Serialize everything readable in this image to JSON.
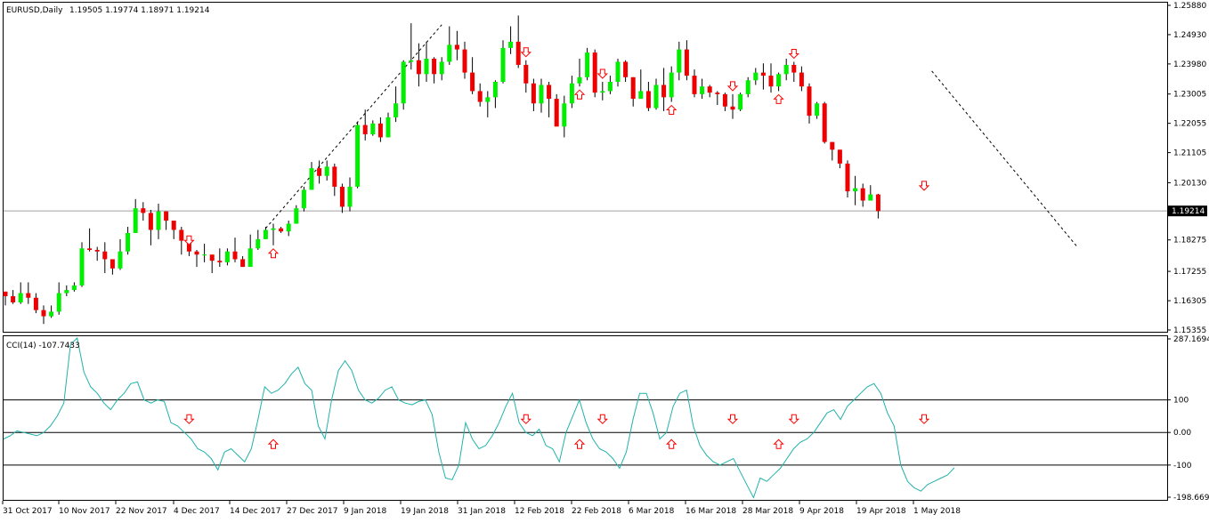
{
  "header": {
    "symbol_label": "EURUSD,Daily",
    "ohlc": "1.19505 1.19774 1.18971 1.19214"
  },
  "colors": {
    "bull": "#00ee00",
    "bear": "#ee0000",
    "cci_line": "#20b2aa",
    "arrow": "#ff0000",
    "frame": "#000000",
    "current_price_line": "#a0a0a0"
  },
  "chart_data": [
    {
      "type": "candlestick",
      "title": "EURUSD,Daily",
      "ylim": [
        1.15355,
        1.2588
      ],
      "current_price": 1.19214,
      "current_price_label": "1.19214",
      "y_tick_labels": [
        "1.25880",
        "1.24930",
        "1.23980",
        "1.23005",
        "1.22055",
        "1.21105",
        "1.20130",
        "1.18275",
        "1.17255",
        "1.16305",
        "1.15355"
      ],
      "x_tick_labels": [
        "31 Oct 2017",
        "10 Nov 2017",
        "22 Nov 2017",
        "4 Dec 2017",
        "14 Dec 2017",
        "27 Dec 2017",
        "9 Jan 2018",
        "19 Jan 2018",
        "31 Jan 2018",
        "12 Feb 2018",
        "22 Feb 2018",
        "6 Mar 2018",
        "16 Mar 2018",
        "28 Mar 2018",
        "9 Apr 2018",
        "19 Apr 2018",
        "1 May 2018"
      ],
      "close": [
        1.1645,
        1.1625,
        1.1655,
        1.164,
        1.16,
        1.158,
        1.1595,
        1.1655,
        1.1665,
        1.168,
        1.18,
        1.1795,
        1.179,
        1.1765,
        1.1735,
        1.179,
        1.185,
        1.193,
        1.1915,
        1.186,
        1.192,
        1.189,
        1.186,
        1.1825,
        1.179,
        1.178,
        1.178,
        1.176,
        1.1755,
        1.179,
        1.1765,
        1.174,
        1.18,
        1.183,
        1.186,
        1.1865,
        1.1855,
        1.188,
        1.193,
        1.199,
        1.206,
        1.2035,
        1.2065,
        1.2,
        1.1935,
        1.2,
        1.22,
        1.217,
        1.2205,
        1.216,
        1.2225,
        1.227,
        1.2405,
        1.241,
        1.2365,
        1.2415,
        1.2365,
        1.2405,
        1.246,
        1.2445,
        1.237,
        1.231,
        1.2275,
        1.229,
        1.234,
        1.245,
        1.247,
        1.2395,
        1.2335,
        1.227,
        1.233,
        1.2285,
        1.2195,
        1.227,
        1.2335,
        1.2355,
        1.2435,
        1.2305,
        1.231,
        1.234,
        1.2405,
        1.2355,
        1.2285,
        1.231,
        1.2255,
        1.233,
        1.229,
        1.237,
        1.2445,
        1.236,
        1.23,
        1.2325,
        1.2305,
        1.23,
        1.226,
        1.225,
        1.23,
        1.2345,
        1.237,
        1.236,
        1.2325,
        1.2365,
        1.2395,
        1.237,
        1.2325,
        1.223,
        1.227,
        1.2145,
        1.212,
        1.2075,
        1.1985,
        1.1995,
        1.1955,
        1.1975,
        1.1921
      ],
      "high": [
        1.166,
        1.1665,
        1.169,
        1.169,
        1.1655,
        1.1615,
        1.1615,
        1.169,
        1.168,
        1.169,
        1.182,
        1.1865,
        1.1805,
        1.182,
        1.1745,
        1.183,
        1.187,
        1.196,
        1.195,
        1.1925,
        1.1945,
        1.192,
        1.189,
        1.187,
        1.18,
        1.1795,
        1.1815,
        1.1775,
        1.18,
        1.18,
        1.1835,
        1.1775,
        1.1845,
        1.186,
        1.187,
        1.188,
        1.187,
        1.189,
        1.194,
        1.2,
        1.208,
        1.2085,
        1.2085,
        1.2075,
        1.201,
        1.203,
        1.221,
        1.225,
        1.2215,
        1.2225,
        1.224,
        1.2325,
        1.241,
        1.253,
        1.2465,
        1.247,
        1.242,
        1.242,
        1.252,
        1.2505,
        1.247,
        1.242,
        1.2335,
        1.231,
        1.2345,
        1.2475,
        1.252,
        1.2555,
        1.241,
        1.235,
        1.235,
        1.234,
        1.23,
        1.2295,
        1.236,
        1.2415,
        1.245,
        1.2445,
        1.234,
        1.236,
        1.2415,
        1.241,
        1.2355,
        1.238,
        1.234,
        1.235,
        1.2385,
        1.239,
        1.247,
        1.2475,
        1.238,
        1.235,
        1.233,
        1.231,
        1.2305,
        1.23,
        1.2305,
        1.2355,
        1.2385,
        1.24,
        1.24,
        1.237,
        1.2415,
        1.2405,
        1.239,
        1.2335,
        1.2275,
        1.2275,
        1.2145,
        1.212,
        1.2085,
        1.2035,
        1.201,
        1.2005,
        1.1977
      ],
      "low": [
        1.1615,
        1.162,
        1.162,
        1.162,
        1.159,
        1.1555,
        1.1575,
        1.1585,
        1.1645,
        1.166,
        1.1675,
        1.179,
        1.176,
        1.172,
        1.1715,
        1.173,
        1.178,
        1.185,
        1.189,
        1.181,
        1.183,
        1.186,
        1.183,
        1.178,
        1.1775,
        1.174,
        1.1755,
        1.172,
        1.174,
        1.1745,
        1.1755,
        1.174,
        1.1745,
        1.1795,
        1.183,
        1.181,
        1.185,
        1.184,
        1.188,
        1.192,
        1.199,
        1.201,
        1.202,
        1.197,
        1.1915,
        1.192,
        1.1995,
        1.215,
        1.2165,
        1.2145,
        1.216,
        1.221,
        1.225,
        1.238,
        1.2325,
        1.234,
        1.2335,
        1.2345,
        1.2395,
        1.241,
        1.235,
        1.23,
        1.226,
        1.2225,
        1.2255,
        1.2335,
        1.243,
        1.2385,
        1.2305,
        1.2245,
        1.224,
        1.2225,
        1.2205,
        1.216,
        1.2255,
        1.2325,
        1.2345,
        1.229,
        1.228,
        1.23,
        1.2325,
        1.234,
        1.226,
        1.2285,
        1.2245,
        1.225,
        1.2245,
        1.2275,
        1.2345,
        1.2345,
        1.229,
        1.2285,
        1.229,
        1.2265,
        1.2245,
        1.222,
        1.2245,
        1.229,
        1.233,
        1.2315,
        1.2305,
        1.231,
        1.2345,
        1.234,
        1.231,
        1.2205,
        1.222,
        1.214,
        1.2085,
        1.206,
        1.1965,
        1.194,
        1.1935,
        1.1955,
        1.1897
      ],
      "signals": [
        {
          "index": 24,
          "direction": "down"
        },
        {
          "index": 35,
          "direction": "up"
        },
        {
          "index": 68,
          "direction": "down"
        },
        {
          "index": 75,
          "direction": "up"
        },
        {
          "index": 78,
          "direction": "down"
        },
        {
          "index": 87,
          "direction": "up"
        },
        {
          "index": 95,
          "direction": "down"
        },
        {
          "index": 101,
          "direction": "up"
        },
        {
          "index": 103,
          "direction": "down"
        },
        {
          "index": 120,
          "direction": "down"
        }
      ],
      "trendlines": [
        {
          "from": [
            34,
            1.1865
          ],
          "to": [
            57,
            1.2525
          ]
        },
        {
          "from": [
            121,
            1.2375
          ],
          "to": [
            140,
            1.1805
          ]
        }
      ]
    },
    {
      "type": "line",
      "title": "CCI(14) -107.7433",
      "ylim": [
        -198.6695,
        287.1694
      ],
      "y_tick_labels": [
        "287.1694",
        "100",
        "0.00",
        "-100",
        "-198.6695"
      ],
      "levels": [
        100,
        0,
        -100
      ],
      "values": [
        -20,
        -10,
        5,
        0,
        -5,
        -10,
        0,
        20,
        50,
        90,
        270,
        290,
        185,
        140,
        120,
        90,
        70,
        100,
        120,
        150,
        155,
        100,
        90,
        100,
        95,
        30,
        20,
        0,
        -20,
        -50,
        -60,
        -80,
        -115,
        -60,
        -50,
        -70,
        -90,
        -50,
        40,
        140,
        120,
        130,
        150,
        180,
        200,
        150,
        130,
        20,
        -20,
        100,
        190,
        220,
        190,
        130,
        100,
        90,
        105,
        130,
        140,
        100,
        90,
        85,
        95,
        100,
        55,
        -60,
        -140,
        -145,
        -100,
        30,
        -20,
        -50,
        -40,
        -10,
        30,
        80,
        120,
        30,
        0,
        -10,
        10,
        -40,
        -50,
        -90,
        0,
        50,
        100,
        30,
        -20,
        -50,
        -60,
        -80,
        -110,
        -60,
        40,
        120,
        120,
        60,
        -20,
        0,
        80,
        120,
        130,
        20,
        -40,
        -70,
        -90,
        -100,
        -90,
        -80,
        -120,
        -160,
        -200,
        -140,
        -150,
        -130,
        -110,
        -80,
        -50,
        -30,
        -20,
        0,
        30,
        60,
        70,
        40,
        80,
        100,
        120,
        140,
        150,
        120,
        60,
        20,
        -100,
        -150,
        -170,
        -180,
        -160,
        -150,
        -140,
        -130,
        -108
      ]
    }
  ]
}
